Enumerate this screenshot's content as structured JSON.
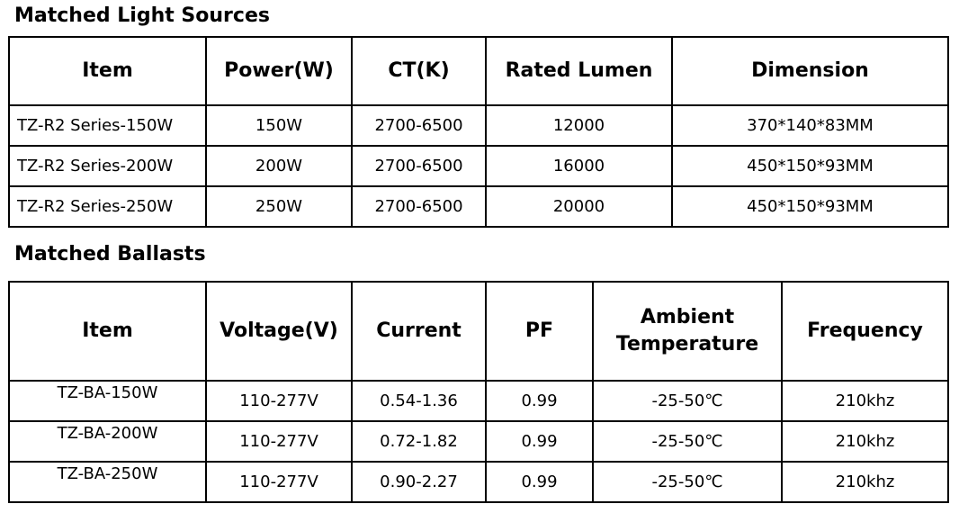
{
  "light_sources": {
    "title": "Matched Light Sources",
    "headers": [
      "Item",
      "Power(W)",
      "CT(K)",
      "Rated Lumen",
      "Dimension"
    ],
    "rows": [
      [
        "TZ-R2 Series-150W",
        "150W",
        "2700-6500",
        "12000",
        "370*140*83MM"
      ],
      [
        "TZ-R2 Series-200W",
        "200W",
        "2700-6500",
        "16000",
        "450*150*93MM"
      ],
      [
        "TZ-R2 Series-250W",
        "250W",
        "2700-6500",
        "20000",
        "450*150*93MM"
      ]
    ]
  },
  "ballasts": {
    "title": "Matched Ballasts",
    "headers": [
      "Item",
      "Voltage(V)",
      "Current",
      "PF",
      "Ambient Temperature",
      "Frequency"
    ],
    "rows": [
      [
        "TZ-BA-150W",
        "110-277V",
        "0.54-1.36",
        "0.99",
        "-25-50℃",
        "210khz"
      ],
      [
        "TZ-BA-200W",
        "110-277V",
        "0.72-1.82",
        "0.99",
        "-25-50℃",
        "210khz"
      ],
      [
        "TZ-BA-250W",
        "110-277V",
        "0.90-2.27",
        "0.99",
        "-25-50℃",
        "210khz"
      ]
    ]
  }
}
